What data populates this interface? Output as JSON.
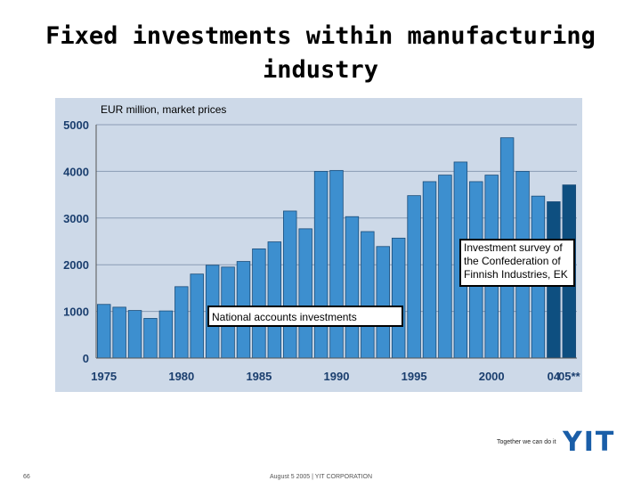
{
  "header": {
    "title": "Fixed investments within manufacturing industry"
  },
  "chart_data": {
    "type": "bar",
    "title": "Fixed investments within manufacturing industry",
    "ylabel": "EUR million, market prices",
    "xlabel": "",
    "ylim": [
      0,
      5000
    ],
    "yticks": [
      0,
      1000,
      2000,
      3000,
      4000,
      5000
    ],
    "xtick_labels": [
      {
        "label": "1975",
        "index": 0
      },
      {
        "label": "1980",
        "index": 5
      },
      {
        "label": "1985",
        "index": 10
      },
      {
        "label": "1990",
        "index": 15
      },
      {
        "label": "1995",
        "index": 20
      },
      {
        "label": "2000",
        "index": 25
      },
      {
        "label": "04",
        "index": 29
      },
      {
        "label": "05**",
        "index": 30
      }
    ],
    "categories": [
      "1975",
      "1976",
      "1977",
      "1978",
      "1979",
      "1980",
      "1981",
      "1982",
      "1983",
      "1984",
      "1985",
      "1986",
      "1987",
      "1988",
      "1989",
      "1990",
      "1991",
      "1992",
      "1993",
      "1994",
      "1995",
      "1996",
      "1997",
      "1998",
      "1999",
      "2000",
      "2001",
      "2002",
      "2003",
      "2004",
      "2005"
    ],
    "values": [
      1150,
      1090,
      1020,
      850,
      1010,
      1530,
      1800,
      1990,
      1950,
      2070,
      2340,
      2490,
      3150,
      2770,
      4000,
      4020,
      3030,
      2710,
      2390,
      2570,
      3480,
      3780,
      3920,
      4200,
      3780,
      3920,
      4720,
      4000,
      3470,
      3350,
      3710
    ],
    "bar_color": "#3d8fcf",
    "highlight_color": "#0e4f80",
    "highlight_indices": [
      29,
      30
    ],
    "annotations": [
      {
        "text": "Investment survey of the Confederation of Finnish Industries, EK"
      },
      {
        "text": "National accounts investments"
      }
    ]
  },
  "footer": {
    "slogan": "Together we can do it",
    "logo": "YIT",
    "page_number": "66",
    "text": "August 5 2005   |   YIT CORPORATION"
  }
}
